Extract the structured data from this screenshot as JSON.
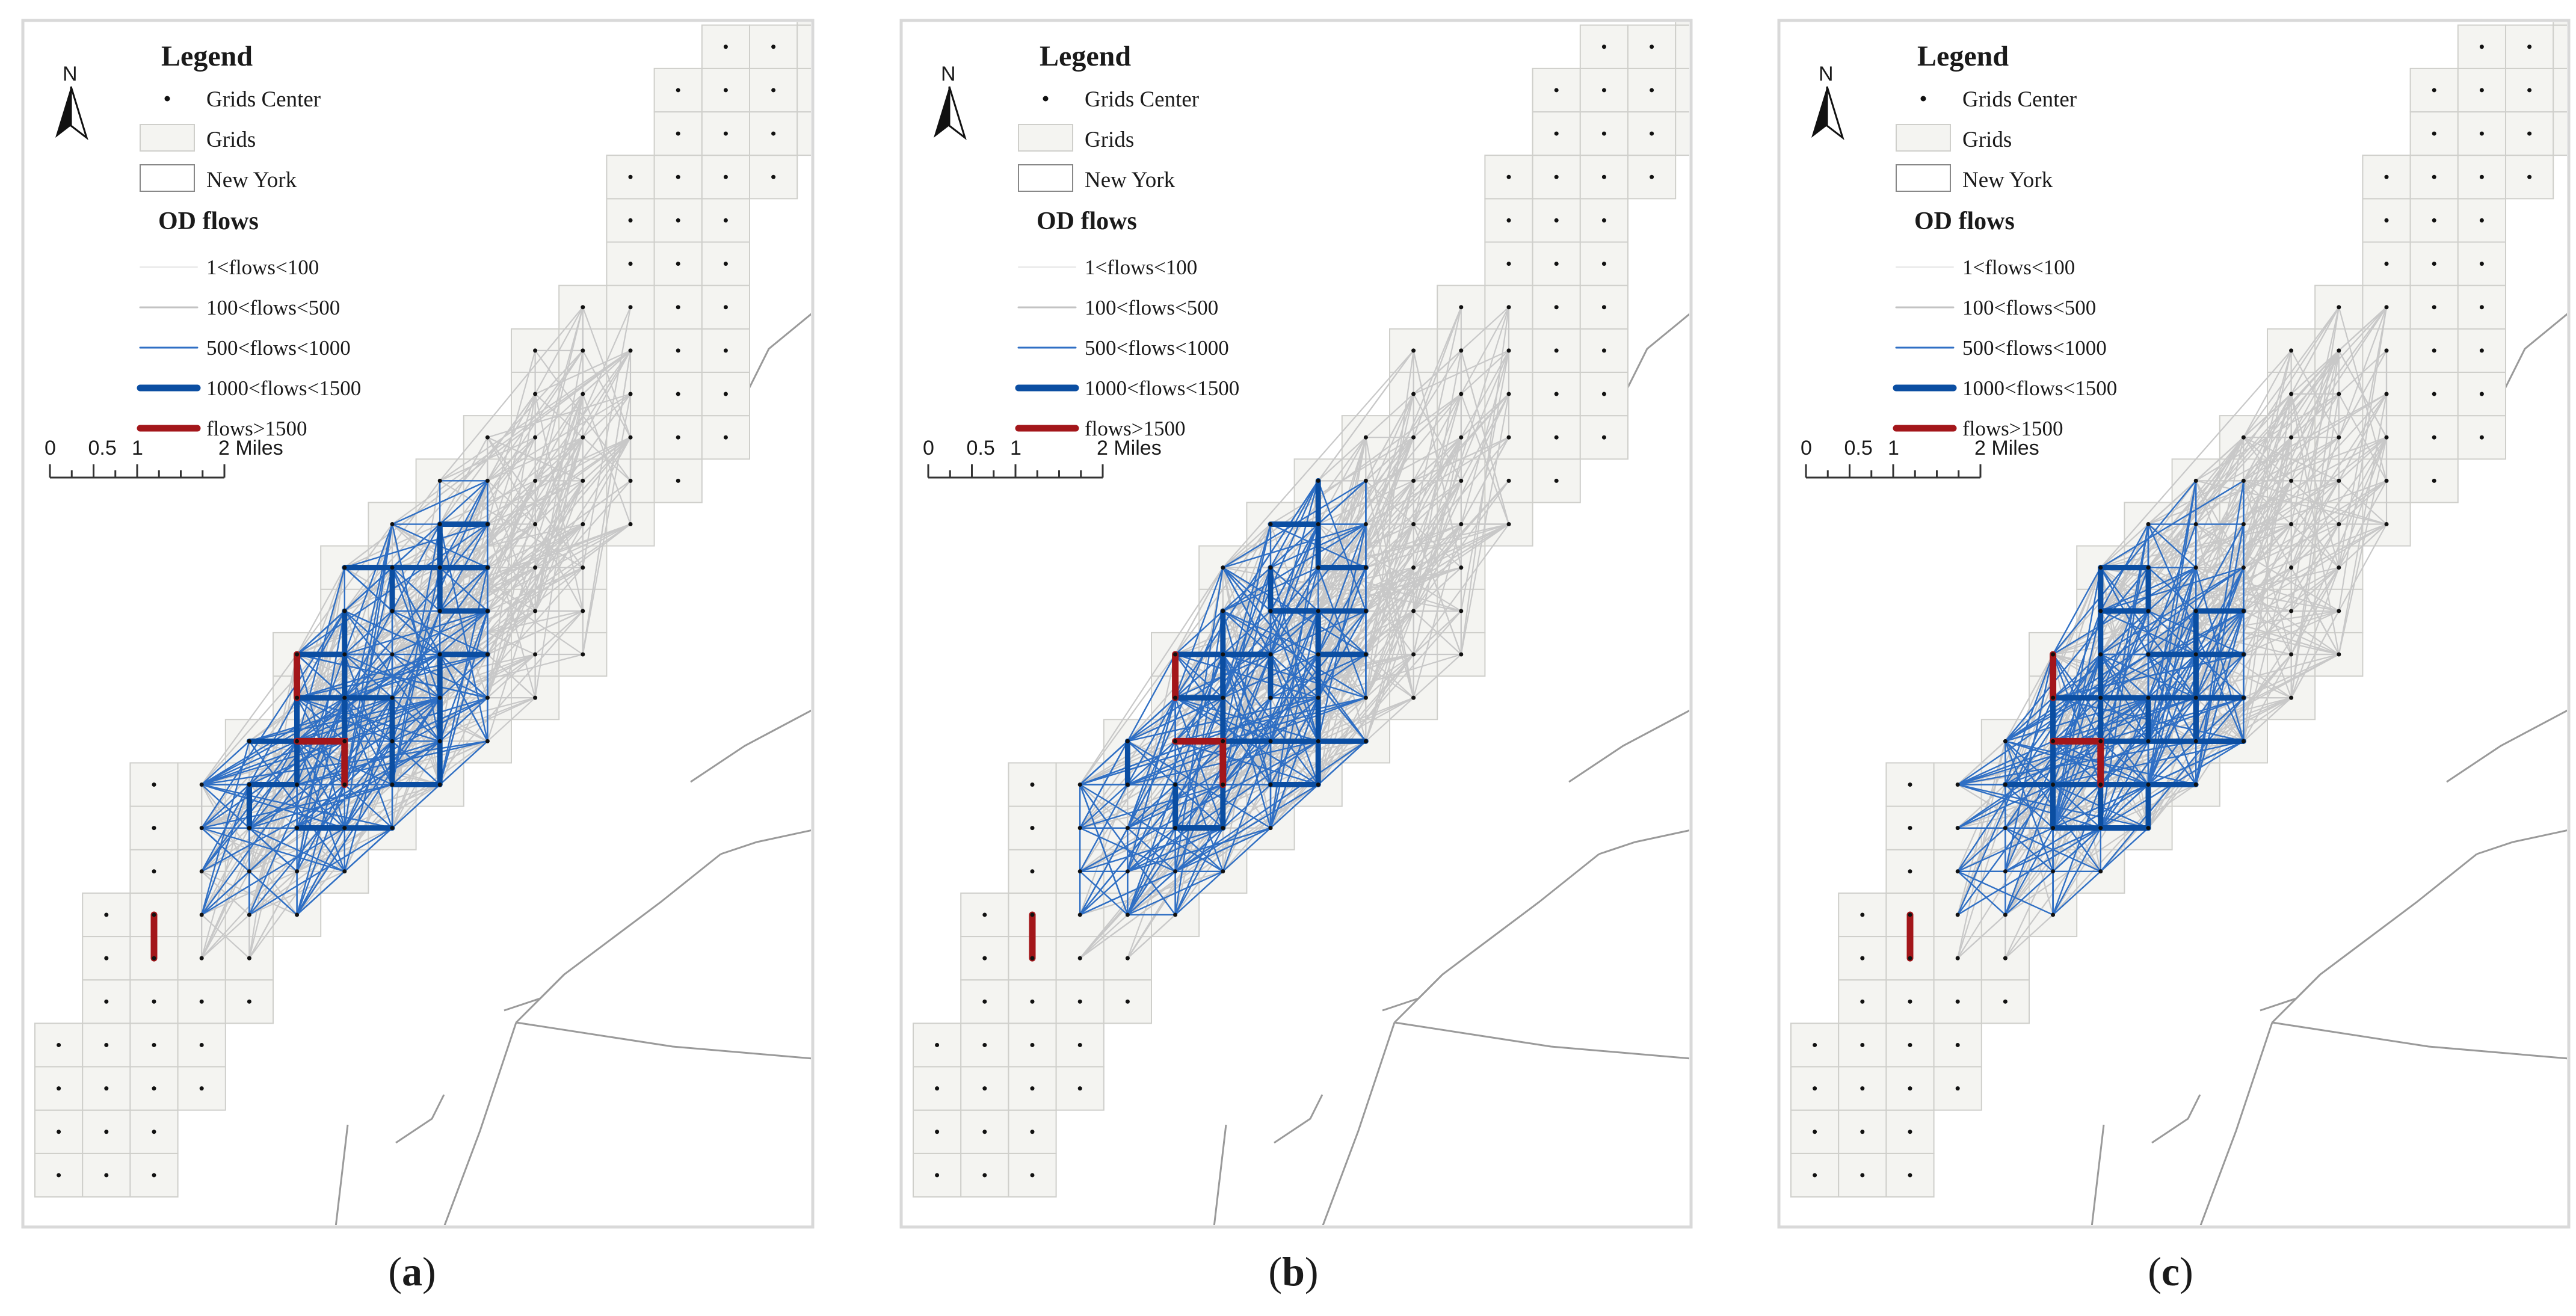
{
  "legend": {
    "title": "Legend",
    "grids_center": "Grids Center",
    "grids": "Grids",
    "new_york": "New York",
    "od_title": "OD flows",
    "flow_classes": [
      {
        "label": "1<flows<100",
        "color": "#e6e6e6",
        "weight": "hairline"
      },
      {
        "label": "100<flows<500",
        "color": "#c3c3c3",
        "weight": "thin"
      },
      {
        "label": "500<flows<1000",
        "color": "#2f6fc4",
        "weight": "thin"
      },
      {
        "label": "1000<flows<1500",
        "color": "#0b4ea2",
        "weight": "thick"
      },
      {
        "label": "flows>1500",
        "color": "#a3161a",
        "weight": "thick"
      }
    ]
  },
  "scale_bar": {
    "ticks": [
      "0",
      "0.5",
      "1",
      "2 Miles"
    ]
  },
  "north_arrow": {
    "label": "N"
  },
  "panels": [
    {
      "id": "a",
      "caption_open": "(",
      "caption_letter": "a",
      "caption_close": ")"
    },
    {
      "id": "b",
      "caption_open": "(",
      "caption_letter": "b",
      "caption_close": ")"
    },
    {
      "id": "c",
      "caption_open": "(",
      "caption_letter": "c",
      "caption_close": ")"
    }
  ],
  "colors": {
    "grid_fill": "#f4f4f1",
    "grid_stroke": "#cfcfcb",
    "panel_border": "#d9d9d9",
    "boundary": "#9a9a9a",
    "flow_light": "#c8c8c8",
    "flow_blue": "#2f6fc4",
    "flow_dark": "#0b4ea2",
    "flow_red": "#a3161a"
  }
}
